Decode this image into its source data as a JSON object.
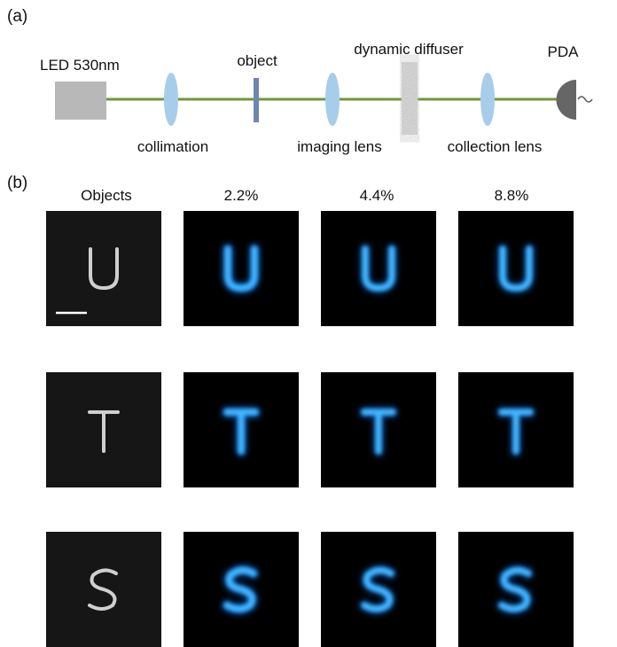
{
  "panel_a": {
    "label": "(a)",
    "components": {
      "led": "LED 530nm",
      "object": "object",
      "diffuser": "dynamic diffuser",
      "detector": "PDA",
      "collimation": "collimation",
      "imaging_lens": "imaging lens",
      "collection_lens": "collection lens"
    }
  },
  "panel_b": {
    "label": "(b)",
    "column_headers": [
      "Objects",
      "2.2%",
      "4.4%",
      "8.8%"
    ]
  }
}
